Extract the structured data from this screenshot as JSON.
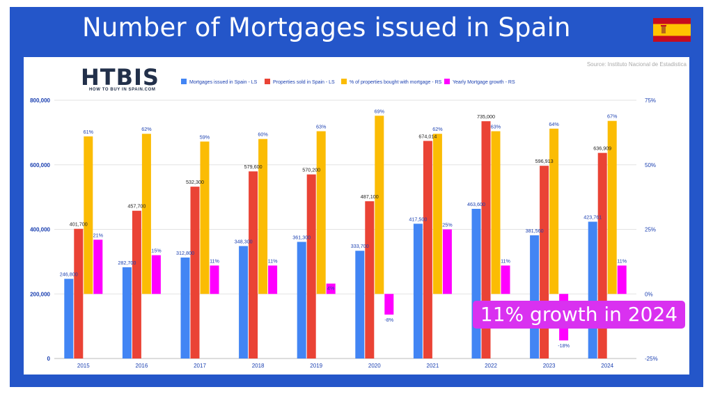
{
  "page": {
    "title": "Number of Mortgages issued in Spain",
    "logo_text": "HTBIS",
    "logo_subtext": "HOW TO BUY IN SPAIN.COM",
    "source": "Source: Instituto Nacional de Estadistica",
    "callout": "11% growth in 2024",
    "flag_icon": "spain-flag-icon"
  },
  "colors": {
    "frame": "#2456c9",
    "mortgages": "#4285f4",
    "properties": "#ea4335",
    "pct_bought": "#fbbc04",
    "growth": "#ff00ff",
    "callout": "#d931f0"
  },
  "chart_data": {
    "type": "bar",
    "categories": [
      "2015",
      "2016",
      "2017",
      "2018",
      "2019",
      "2020",
      "2021",
      "2022",
      "2023",
      "2024"
    ],
    "left_axis": {
      "ylim": [
        0,
        800000
      ],
      "ticks": [
        "0",
        "200,000",
        "400,000",
        "600,000",
        "800,000"
      ]
    },
    "right_axis": {
      "ylim": [
        -25,
        75
      ],
      "ticks": [
        "-25%",
        "0%",
        "25%",
        "50%",
        "75%"
      ]
    },
    "legend_position": "top",
    "series": [
      {
        "name": "Mortgages issued in Spain - LS",
        "axis": "left",
        "values": [
          246800,
          282700,
          312800,
          348300,
          361300,
          333700,
          417500,
          463600,
          381560,
          423761
        ],
        "labels": [
          "246,800",
          "282,700",
          "312,800",
          "348,300",
          "361,300",
          "333,700",
          "417,500",
          "463,600",
          "381,560",
          "423,761"
        ]
      },
      {
        "name": "Properties sold in Spain - LS",
        "axis": "left",
        "values": [
          401700,
          457700,
          532300,
          579600,
          570200,
          487100,
          674014,
          735000,
          596913,
          636909
        ],
        "labels": [
          "401,700",
          "457,700",
          "532,300",
          "579,600",
          "570,200",
          "487,100",
          "674,014",
          "735,000",
          "596,913",
          "636,909"
        ]
      },
      {
        "name": "% of properties bought with mortgage - RS",
        "axis": "right",
        "values": [
          61,
          62,
          59,
          60,
          63,
          69,
          62,
          63,
          64,
          67
        ],
        "labels": [
          "61%",
          "62%",
          "59%",
          "60%",
          "63%",
          "69%",
          "62%",
          "63%",
          "64%",
          "67%"
        ]
      },
      {
        "name": "Yearly Mortgage growth - RS",
        "axis": "right",
        "values": [
          21,
          15,
          11,
          11,
          4,
          -8,
          25,
          11,
          -18,
          11
        ],
        "labels": [
          "21%",
          "15%",
          "11%",
          "11%",
          "4%",
          "-8%",
          "25%",
          "11%",
          "-18%",
          "11%"
        ]
      }
    ]
  }
}
